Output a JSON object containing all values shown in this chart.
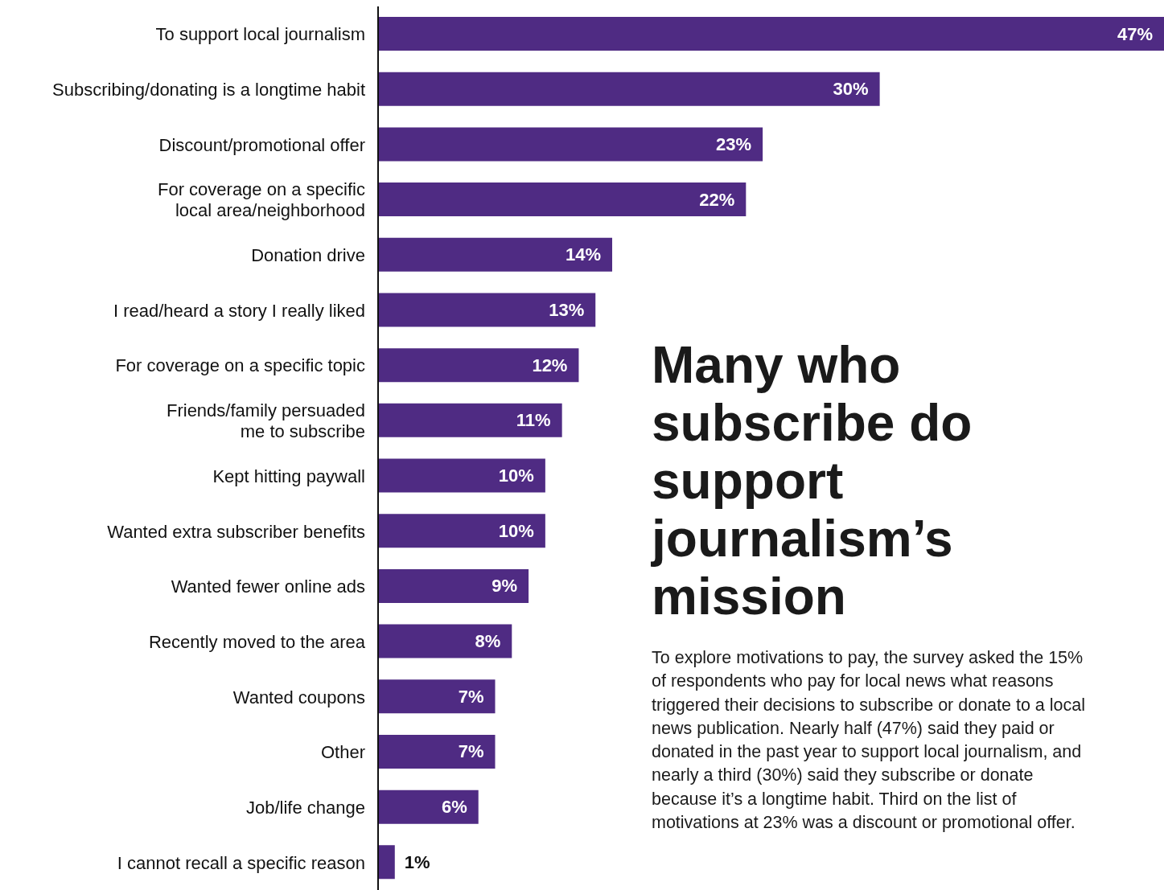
{
  "chart_data": {
    "type": "bar",
    "orientation": "horizontal",
    "title": "Many who subscribe do support journalism’s mission",
    "annotations": [
      "To explore motivations to pay, the survey asked the 15% of respondents who pay for local news what reasons triggered their decisions to subscribe or donate to a local news publication. Nearly half (47%) said they paid or donated in the past year to support local journalism, and nearly a third (30%) said they subscribe or donate because it’s a longtime habit. Third on the list of motivations at 23% was a discount or promotional offer."
    ],
    "categories": [
      "To support local journalism",
      "Subscribing/donating is a longtime habit",
      "Discount/promotional offer",
      "For coverage on a specific\nlocal area/neighborhood",
      "Donation drive",
      "I read/heard a story I really liked",
      "For coverage on a specific topic",
      "Friends/family persuaded\nme to subscribe",
      "Kept hitting paywall",
      "Wanted extra subscriber benefits",
      "Wanted fewer online ads",
      "Recently moved to the area",
      "Wanted coupons",
      "Other",
      "Job/life change",
      "I cannot recall a specific reason"
    ],
    "values": [
      47,
      30,
      23,
      22,
      14,
      13,
      12,
      11,
      10,
      10,
      9,
      8,
      7,
      7,
      6,
      1
    ],
    "value_labels": [
      "47%",
      "30%",
      "23%",
      "22%",
      "14%",
      "13%",
      "12%",
      "11%",
      "10%",
      "10%",
      "9%",
      "8%",
      "7%",
      "7%",
      "6%",
      "1%"
    ],
    "color": "#4f2b83",
    "xlim": [
      0,
      47
    ],
    "tick_labels": "y",
    "grid": false,
    "legend": false
  }
}
